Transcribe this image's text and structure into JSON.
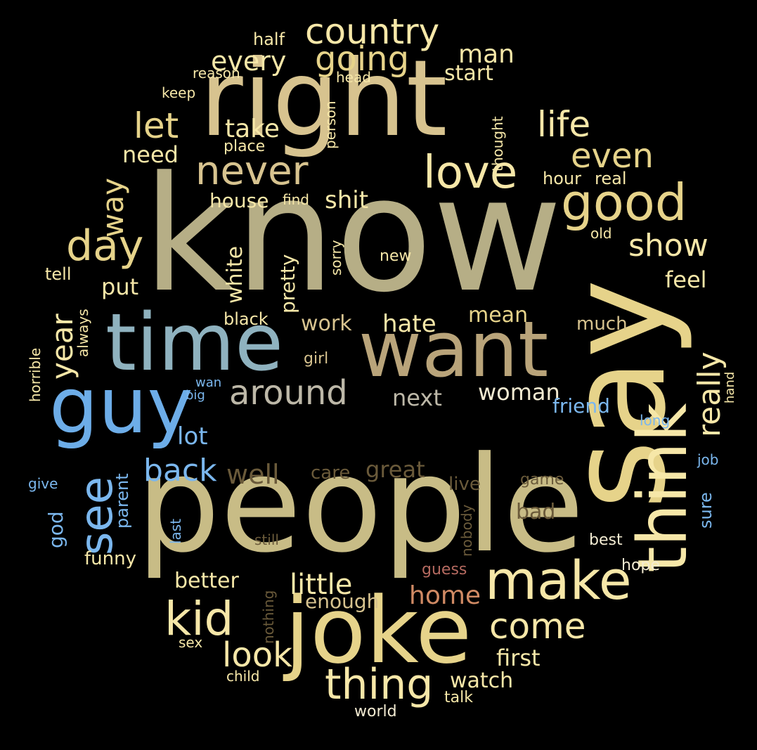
{
  "palette": {
    "background": "#000000",
    "olive": "#B6AE86",
    "khaki": "#C8BC86",
    "gold": "#E6D38A",
    "yellow": "#F3DE86",
    "pale": "#F6E7A8",
    "sand": "#D7C38F",
    "tan": "#B9A47A",
    "brown": "#8C7A55",
    "darkbrown": "#6A5A3A",
    "gray": "#BDB8A8",
    "teal": "#8FB2BF",
    "blue": "#6DADE8",
    "lightblue": "#7BB7EE",
    "rose": "#B56A60",
    "copper": "#D08A64",
    "white": "#F3EBD2"
  },
  "words": [
    {
      "text": "know"
    },
    {
      "text": "people"
    },
    {
      "text": "say"
    },
    {
      "text": "right"
    },
    {
      "text": "joke"
    },
    {
      "text": "want"
    },
    {
      "text": "time"
    },
    {
      "text": "think"
    },
    {
      "text": "guy"
    },
    {
      "text": "make"
    },
    {
      "text": "good"
    },
    {
      "text": "love"
    },
    {
      "text": "never"
    },
    {
      "text": "thing"
    },
    {
      "text": "kid"
    },
    {
      "text": "see"
    },
    {
      "text": "day"
    },
    {
      "text": "country"
    },
    {
      "text": "going"
    },
    {
      "text": "come"
    },
    {
      "text": "life"
    },
    {
      "text": "even"
    },
    {
      "text": "let"
    },
    {
      "text": "look"
    },
    {
      "text": "around"
    },
    {
      "text": "really"
    },
    {
      "text": "show"
    },
    {
      "text": "back"
    },
    {
      "text": "way"
    },
    {
      "text": "year"
    },
    {
      "text": "little"
    },
    {
      "text": "every"
    },
    {
      "text": "take"
    },
    {
      "text": "well"
    },
    {
      "text": "man"
    },
    {
      "text": "home"
    },
    {
      "text": "hate"
    },
    {
      "text": "first"
    },
    {
      "text": "watch"
    },
    {
      "text": "woman"
    },
    {
      "text": "next"
    },
    {
      "text": "shit"
    },
    {
      "text": "feel"
    },
    {
      "text": "lot"
    },
    {
      "text": "great"
    },
    {
      "text": "better"
    },
    {
      "text": "need"
    },
    {
      "text": "put"
    },
    {
      "text": "white"
    },
    {
      "text": "work"
    },
    {
      "text": "enough"
    },
    {
      "text": "start"
    },
    {
      "text": "mean"
    },
    {
      "text": "house"
    },
    {
      "text": "friend"
    },
    {
      "text": "bad"
    },
    {
      "text": "pretty"
    },
    {
      "text": "much"
    },
    {
      "text": "funny"
    },
    {
      "text": "care"
    },
    {
      "text": "live"
    },
    {
      "text": "black"
    },
    {
      "text": "god"
    },
    {
      "text": "parent"
    },
    {
      "text": "sure"
    },
    {
      "text": "hour"
    },
    {
      "text": "real"
    },
    {
      "text": "tell"
    },
    {
      "text": "half"
    },
    {
      "text": "place"
    },
    {
      "text": "hope"
    },
    {
      "text": "best"
    },
    {
      "text": "game"
    },
    {
      "text": "talk"
    },
    {
      "text": "world"
    },
    {
      "text": "girl"
    },
    {
      "text": "guess"
    },
    {
      "text": "reason"
    },
    {
      "text": "keep"
    },
    {
      "text": "head"
    },
    {
      "text": "person"
    },
    {
      "text": "thought"
    },
    {
      "text": "sorry"
    },
    {
      "text": "new"
    },
    {
      "text": "old"
    },
    {
      "text": "find"
    },
    {
      "text": "always"
    },
    {
      "text": "horrible"
    },
    {
      "text": "give"
    },
    {
      "text": "long"
    },
    {
      "text": "job"
    },
    {
      "text": "hand"
    },
    {
      "text": "still"
    },
    {
      "text": "nobody"
    },
    {
      "text": "last"
    },
    {
      "text": "nothing"
    },
    {
      "text": "child"
    },
    {
      "text": "sex"
    },
    {
      "text": "wan"
    },
    {
      "text": "big"
    }
  ]
}
